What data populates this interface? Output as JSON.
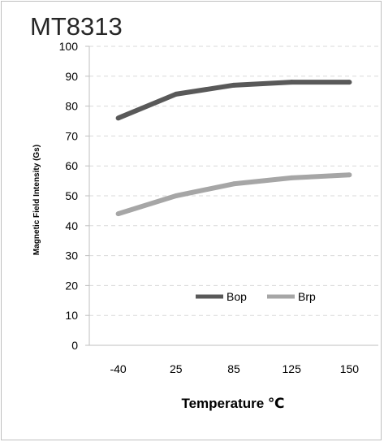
{
  "chart_data": {
    "type": "line",
    "title": "MT8313",
    "xlabel": "Temperature ℃",
    "ylabel": "Magnetic Field Intensity (Gs)",
    "categories": [
      "-40",
      "25",
      "85",
      "125",
      "150"
    ],
    "ylim": [
      0,
      100
    ],
    "yticks": [
      0,
      10,
      20,
      30,
      40,
      50,
      60,
      70,
      80,
      90,
      100
    ],
    "grid": "horizontal-dashed",
    "legend_position": "inside-lower-right",
    "series": [
      {
        "name": "Bop",
        "color": "#595959",
        "values": [
          76,
          84,
          87,
          88,
          88
        ]
      },
      {
        "name": "Brp",
        "color": "#a6a6a6",
        "values": [
          44,
          50,
          54,
          56,
          57
        ]
      }
    ]
  }
}
